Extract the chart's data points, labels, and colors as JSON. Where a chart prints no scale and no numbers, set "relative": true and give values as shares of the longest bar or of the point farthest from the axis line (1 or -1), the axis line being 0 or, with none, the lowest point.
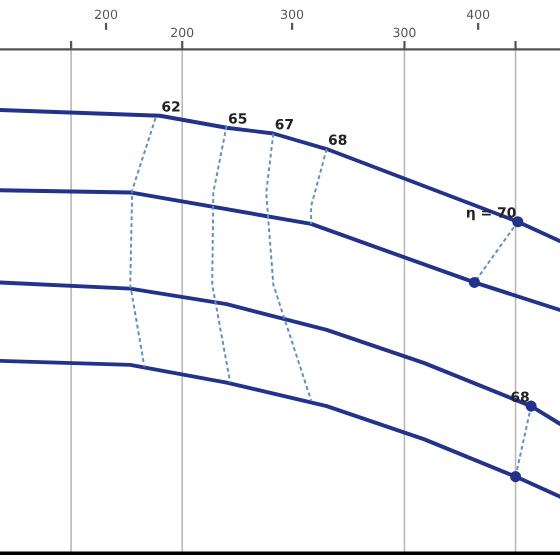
{
  "chart_data": {
    "type": "line",
    "relative": true,
    "xlim": [
      118,
      370
    ],
    "xticks": [
      {
        "value": 150,
        "label": null
      },
      200,
      300,
      {
        "value": 350,
        "label": null
      }
    ],
    "x2lim": [
      143,
      444
    ],
    "x2ticks": [
      200,
      300,
      400
    ],
    "grid": "x",
    "line_style": "solid",
    "series": [
      {
        "color": "#23328a",
        "x": [
          118,
          190,
          220,
          241,
          265,
          351,
          370
        ],
        "values": [
          1,
          0.987,
          0.96,
          0.947,
          0.912,
          0.748,
          0.704
        ]
      },
      {
        "color": "#23328a",
        "x": [
          118,
          176.6,
          258,
          331.5,
          370
        ],
        "values": [
          0.819,
          0.814,
          0.743,
          0.611,
          0.549
        ]
      },
      {
        "color": "#23328a",
        "x": [
          118,
          176.6,
          220,
          265,
          309,
          357,
          370
        ],
        "values": [
          0.611,
          0.597,
          0.562,
          0.504,
          0.429,
          0.332,
          0.292
        ]
      },
      {
        "color": "#23328a",
        "x": [
          118,
          176.6,
          220,
          265,
          309,
          350,
          370
        ],
        "values": [
          0.434,
          0.425,
          0.385,
          0.332,
          0.257,
          0.173,
          0.128
        ]
      },
      {
        "color": "#5b8fc7",
        "line_style": "dashed",
        "x": [
          188,
          177.5,
          176.6,
          183
        ],
        "values": [
          0.982,
          0.819,
          0.606,
          0.42
        ]
      },
      {
        "color": "#5b8fc7",
        "line_style": "dashed",
        "x": [
          220,
          214,
          213.5,
          221.6
        ],
        "values": [
          0.965,
          0.814,
          0.606,
          0.385
        ]
      },
      {
        "color": "#5b8fc7",
        "line_style": "dashed",
        "x": [
          241,
          237.8,
          241,
          258
        ],
        "values": [
          0.947,
          0.814,
          0.606,
          0.345
        ]
      },
      {
        "color": "#5b8fc7",
        "line_style": "dashed",
        "x": [
          265,
          258,
          258
        ],
        "values": [
          0.912,
          0.783,
          0.743
        ]
      },
      {
        "color": "#5b8fc7",
        "line_style": "dashed",
        "x": [
          351,
          331.5
        ],
        "values": [
          0.748,
          0.611
        ]
      },
      {
        "color": "#5b8fc7",
        "line_style": "dashed",
        "x": [
          357,
          350
        ],
        "values": [
          0.332,
          0.173
        ]
      },
      {
        "type": "scatter",
        "color": "#23328a",
        "marker": "circle",
        "x": [
          351,
          331.5,
          357,
          350
        ],
        "values": [
          0.748,
          0.611,
          0.332,
          0.173
        ]
      }
    ],
    "annotations": [
      {
        "text": "62",
        "x": 190,
        "y": 0.987
      },
      {
        "text": "65",
        "x": 220,
        "y": 0.96
      },
      {
        "text": "67",
        "x": 241,
        "y": 0.947
      },
      {
        "text": "68",
        "x": 265,
        "y": 0.912
      },
      {
        "text": "η = 70",
        "x": 351,
        "y": 0.748
      },
      {
        "text": "68",
        "x": 357,
        "y": 0.332
      }
    ]
  }
}
